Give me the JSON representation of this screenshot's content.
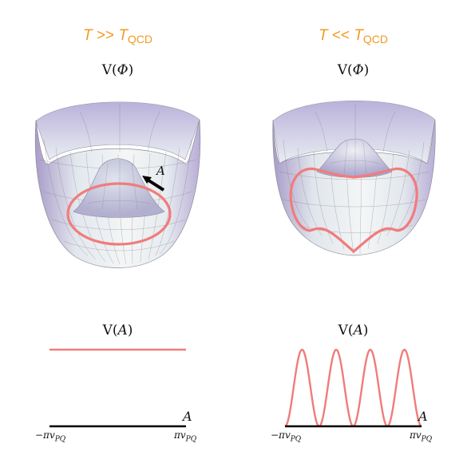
{
  "colors": {
    "header": "#f39a22",
    "valley_ring": "#f07c7c",
    "surface_light": "#e8eef0",
    "surface_purple": "#b7a9d6",
    "axis": "#000000"
  },
  "panels": [
    {
      "header_T": "T",
      "header_op": " >> ",
      "header_T2": "T",
      "header_sub": "QCD",
      "potential_label_prefix": "V(",
      "potential_label_var": "Φ",
      "potential_label_suffix": ")",
      "arrow_label": "A",
      "va_label_prefix": "V(",
      "va_label_var": "A",
      "va_label_suffix": ")",
      "axis_label": "A",
      "tick_left_prefix": "−πv",
      "tick_left_sub": "PQ",
      "tick_right_prefix": "πv",
      "tick_right_sub": "PQ"
    },
    {
      "header_T": "T",
      "header_op": " << ",
      "header_T2": "T",
      "header_sub": "QCD",
      "potential_label_prefix": "V(",
      "potential_label_var": "Φ",
      "potential_label_suffix": ")",
      "va_label_prefix": "V(",
      "va_label_var": "A",
      "va_label_suffix": ")",
      "axis_label": "A",
      "tick_left_prefix": "−πv",
      "tick_left_sub": "PQ",
      "tick_right_prefix": "πv",
      "tick_right_sub": "PQ"
    }
  ],
  "curves": {
    "left_va": {
      "shape": "constant",
      "level": 1
    },
    "right_va": {
      "shape": "cosine",
      "periods": 4,
      "min": 0,
      "max": 1
    }
  }
}
